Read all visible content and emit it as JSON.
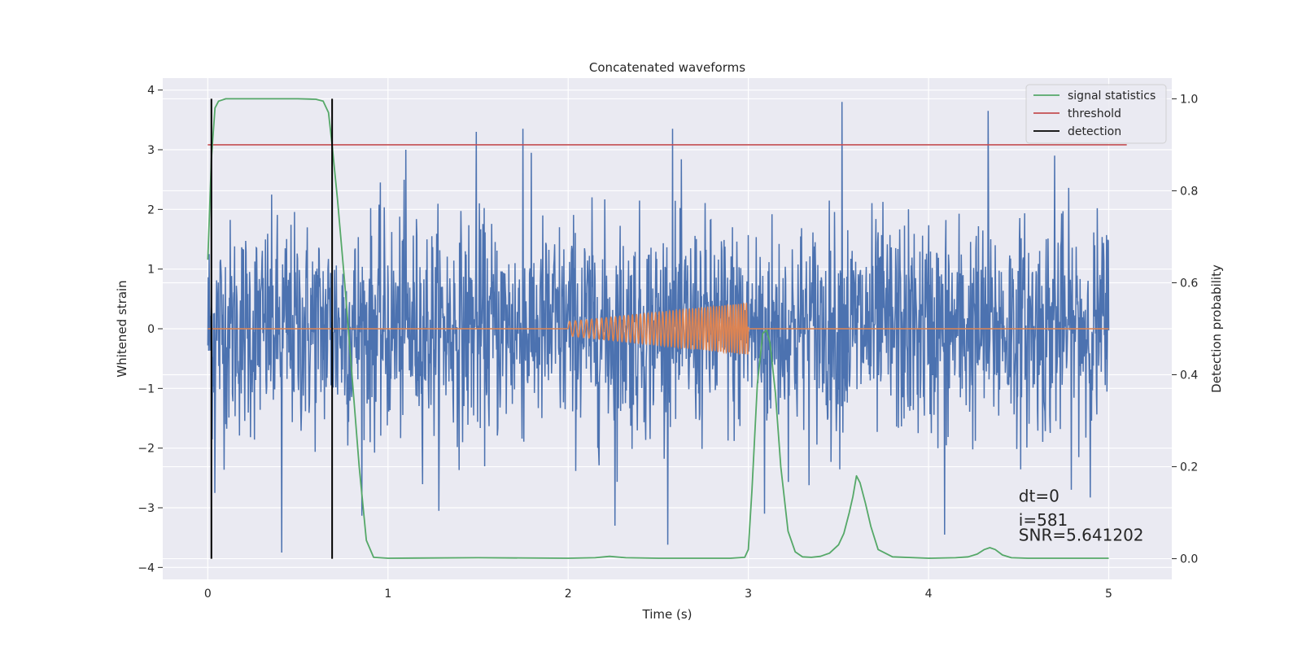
{
  "chart_data": {
    "type": "line",
    "title": "Concatenated waveforms",
    "xlabel": "Time (s)",
    "ylabel": "Whitened strain",
    "ylabel_right": "Detection probability",
    "xlim": [
      -0.25,
      5.35
    ],
    "ylim": [
      -4.2,
      4.2
    ],
    "ylim_right": [
      -0.045,
      1.045
    ],
    "xticks": [
      0,
      1,
      2,
      3,
      4,
      5
    ],
    "xtick_labels": [
      "0",
      "1",
      "2",
      "3",
      "4",
      "5"
    ],
    "yticks": [
      -4,
      -3,
      -2,
      -1,
      0,
      1,
      2,
      3,
      4
    ],
    "ytick_labels": [
      "−4",
      "−3",
      "−2",
      "−1",
      "0",
      "1",
      "2",
      "3",
      "4"
    ],
    "yticks_right": [
      0.0,
      0.2,
      0.4,
      0.6,
      0.8,
      1.0
    ],
    "ytick_labels_right": [
      "0.0",
      "0.2",
      "0.4",
      "0.6",
      "0.8",
      "1.0"
    ],
    "grid": true,
    "legend_position": "top-right",
    "legend": [
      {
        "label": "signal statistics",
        "color": "#55a868"
      },
      {
        "label": "threshold",
        "color": "#c44e52"
      },
      {
        "label": "detection",
        "color": "#000000"
      }
    ],
    "colors": {
      "strain": "#4c72b0",
      "waveform": "#dd8452",
      "signal_statistics": "#55a868",
      "threshold": "#c44e52",
      "detection": "#000000",
      "background": "#eaeaf2",
      "grid": "#ffffff"
    },
    "series": [
      {
        "name": "signal statistics",
        "axis": "right",
        "x": [
          0.0,
          0.02,
          0.04,
          0.06,
          0.1,
          0.15,
          0.3,
          0.5,
          0.6,
          0.64,
          0.67,
          0.69,
          0.72,
          0.76,
          0.8,
          0.84,
          0.88,
          0.92,
          1.0,
          1.5,
          2.0,
          2.15,
          2.23,
          2.32,
          2.5,
          2.9,
          2.98,
          3.0,
          3.02,
          3.05,
          3.08,
          3.1,
          3.12,
          3.15,
          3.18,
          3.22,
          3.26,
          3.3,
          3.35,
          3.4,
          3.45,
          3.5,
          3.53,
          3.56,
          3.58,
          3.6,
          3.62,
          3.65,
          3.68,
          3.72,
          3.8,
          4.0,
          4.15,
          4.22,
          4.27,
          4.31,
          4.34,
          4.37,
          4.41,
          4.46,
          4.55,
          5.0
        ],
        "values": [
          0.65,
          0.87,
          0.98,
          0.995,
          1.0,
          1.0,
          1.0,
          1.0,
          0.999,
          0.995,
          0.97,
          0.9,
          0.78,
          0.6,
          0.4,
          0.2,
          0.04,
          0.003,
          0.001,
          0.002,
          0.001,
          0.002,
          0.005,
          0.002,
          0.001,
          0.001,
          0.003,
          0.02,
          0.15,
          0.38,
          0.49,
          0.497,
          0.47,
          0.36,
          0.2,
          0.06,
          0.015,
          0.004,
          0.003,
          0.005,
          0.012,
          0.03,
          0.055,
          0.1,
          0.135,
          0.18,
          0.165,
          0.12,
          0.07,
          0.02,
          0.004,
          0.001,
          0.002,
          0.004,
          0.01,
          0.02,
          0.024,
          0.02,
          0.008,
          0.002,
          0.001,
          0.001
        ]
      },
      {
        "name": "threshold",
        "axis": "right",
        "x": [
          0.0,
          5.1
        ],
        "values": [
          0.9,
          0.9
        ]
      },
      {
        "name": "detection",
        "axis": "right",
        "type": "vlines",
        "x": [
          0.02,
          0.69
        ],
        "ymin": 0.0,
        "ymax": 1.0
      },
      {
        "axis": "left",
        "type": "noise",
        "x_range": [
          0.0,
          5.0
        ],
        "samples": 2048,
        "std": 0.9,
        "range": [
          -3.75,
          3.8
        ],
        "peaks": [
          {
            "x": 0.41,
            "y": -3.75
          },
          {
            "x": 3.52,
            "y": 3.8
          },
          {
            "x": 4.33,
            "y": 3.65
          },
          {
            "x": 4.09,
            "y": -3.45
          },
          {
            "x": 2.26,
            "y": -3.3
          },
          {
            "x": 1.75,
            "y": 3.35
          },
          {
            "x": 1.49,
            "y": 3.3
          },
          {
            "x": 2.58,
            "y": 3.35
          },
          {
            "x": 3.09,
            "y": -3.1
          },
          {
            "x": 0.04,
            "y": -2.75
          },
          {
            "x": 1.1,
            "y": 3.0
          },
          {
            "x": 4.7,
            "y": 2.9
          }
        ]
      },
      {
        "axis": "left",
        "type": "chirp",
        "x": [
          0.0,
          2.0,
          2.0,
          3.0,
          3.0,
          5.0
        ],
        "amplitude_start": 0.12,
        "amplitude_end": 0.43,
        "frequency_start": 30,
        "frequency_end": 70
      }
    ],
    "annotations": [
      {
        "text": "dt=0",
        "x": 4.5,
        "y": -2.9
      },
      {
        "text": "i=581",
        "x": 4.5,
        "y": -3.3
      },
      {
        "text": "SNR=5.641202",
        "x": 4.5,
        "y": -3.55
      }
    ]
  }
}
